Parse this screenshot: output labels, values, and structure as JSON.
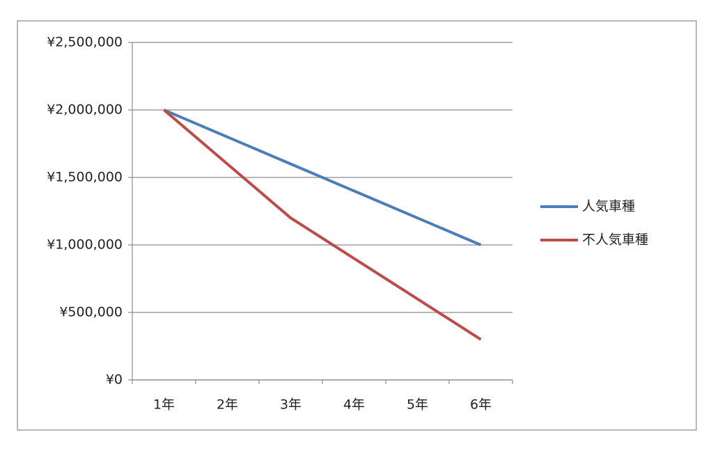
{
  "chart_data": {
    "type": "line",
    "categories": [
      "1年",
      "2年",
      "3年",
      "4年",
      "5年",
      "6年"
    ],
    "series": [
      {
        "name": "人気車種",
        "color": "#4a7ebb",
        "values": [
          2000000,
          1800000,
          1600000,
          1400000,
          1200000,
          1000000
        ]
      },
      {
        "name": "不人気車種",
        "color": "#be4b48",
        "values": [
          2000000,
          1600000,
          1200000,
          900000,
          600000,
          300000
        ]
      }
    ],
    "ylim": [
      0,
      2500000
    ],
    "yticks": [
      {
        "value": 0,
        "label": "¥0"
      },
      {
        "value": 500000,
        "label": "¥500,000"
      },
      {
        "value": 1000000,
        "label": "¥1,000,000"
      },
      {
        "value": 1500000,
        "label": "¥1,500,000"
      },
      {
        "value": 2000000,
        "label": "¥2,000,000"
      },
      {
        "value": 2500000,
        "label": "¥2,500,000"
      }
    ],
    "grid": true,
    "legend": "right"
  }
}
